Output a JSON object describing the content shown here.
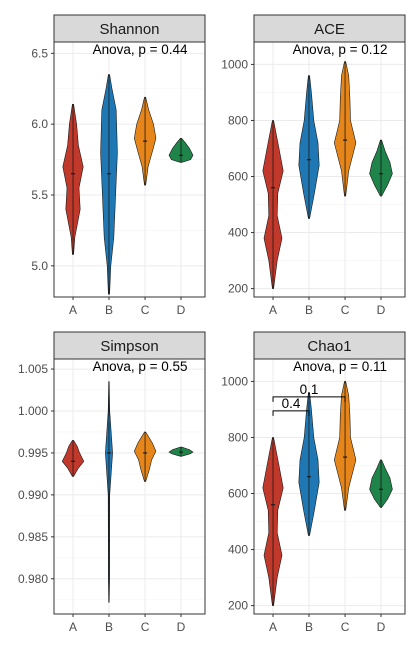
{
  "chart_data": [
    {
      "type": "violin",
      "title": "Shannon",
      "annotation": "Anova, p = 0.44",
      "categories": [
        "A",
        "B",
        "C",
        "D"
      ],
      "colors": [
        "#C0392B",
        "#1F78B4",
        "#E6851A",
        "#1E8449"
      ],
      "ylim": [
        4.78,
        6.58
      ],
      "yticks": [
        5.0,
        5.5,
        6.0,
        6.5
      ],
      "ytick_labels": [
        "5.0",
        "5.5",
        "6.0",
        "6.5"
      ],
      "series": [
        {
          "name": "A",
          "min": 5.08,
          "max": 6.14,
          "median": 5.65,
          "profile": [
            [
              5.08,
              0.05
            ],
            [
              5.2,
              0.15
            ],
            [
              5.4,
              0.6
            ],
            [
              5.55,
              0.5
            ],
            [
              5.7,
              0.85
            ],
            [
              5.85,
              0.45
            ],
            [
              6.0,
              0.3
            ],
            [
              6.14,
              0.05
            ]
          ]
        },
        {
          "name": "B",
          "min": 4.8,
          "max": 6.35,
          "median": 5.65,
          "profile": [
            [
              4.8,
              0.05
            ],
            [
              5.0,
              0.15
            ],
            [
              5.2,
              0.4
            ],
            [
              5.5,
              0.55
            ],
            [
              5.8,
              0.7
            ],
            [
              6.1,
              0.6
            ],
            [
              6.25,
              0.25
            ],
            [
              6.35,
              0.05
            ]
          ]
        },
        {
          "name": "C",
          "min": 5.57,
          "max": 6.19,
          "median": 5.88,
          "profile": [
            [
              5.57,
              0.05
            ],
            [
              5.7,
              0.25
            ],
            [
              5.82,
              0.65
            ],
            [
              5.9,
              0.9
            ],
            [
              6.0,
              0.7
            ],
            [
              6.1,
              0.3
            ],
            [
              6.19,
              0.05
            ]
          ]
        },
        {
          "name": "D",
          "min": 5.73,
          "max": 5.9,
          "median": 5.78,
          "profile": [
            [
              5.73,
              0.05
            ],
            [
              5.75,
              0.8
            ],
            [
              5.78,
              1.0
            ],
            [
              5.83,
              0.7
            ],
            [
              5.87,
              0.35
            ],
            [
              5.9,
              0.05
            ]
          ]
        }
      ]
    },
    {
      "type": "violin",
      "title": "ACE",
      "annotation": "Anova, p = 0.12",
      "categories": [
        "A",
        "B",
        "C",
        "D"
      ],
      "colors": [
        "#C0392B",
        "#1F78B4",
        "#E6851A",
        "#1E8449"
      ],
      "ylim": [
        170,
        1080
      ],
      "yticks": [
        200,
        400,
        600,
        800,
        1000
      ],
      "ytick_labels": [
        "200",
        "400",
        "600",
        "800",
        "1000"
      ],
      "series": [
        {
          "name": "A",
          "min": 200,
          "max": 800,
          "median": 560,
          "profile": [
            [
              200,
              0.05
            ],
            [
              300,
              0.35
            ],
            [
              380,
              0.75
            ],
            [
              460,
              0.35
            ],
            [
              540,
              0.4
            ],
            [
              620,
              0.85
            ],
            [
              700,
              0.5
            ],
            [
              800,
              0.05
            ]
          ]
        },
        {
          "name": "B",
          "min": 450,
          "max": 960,
          "median": 660,
          "profile": [
            [
              450,
              0.05
            ],
            [
              540,
              0.45
            ],
            [
              640,
              0.85
            ],
            [
              720,
              0.75
            ],
            [
              800,
              0.4
            ],
            [
              900,
              0.2
            ],
            [
              960,
              0.05
            ]
          ]
        },
        {
          "name": "C",
          "min": 530,
          "max": 1010,
          "median": 730,
          "profile": [
            [
              530,
              0.05
            ],
            [
              620,
              0.3
            ],
            [
              720,
              0.9
            ],
            [
              800,
              0.45
            ],
            [
              880,
              0.4
            ],
            [
              960,
              0.3
            ],
            [
              1010,
              0.05
            ]
          ]
        },
        {
          "name": "D",
          "min": 530,
          "max": 730,
          "median": 610,
          "profile": [
            [
              530,
              0.05
            ],
            [
              570,
              0.55
            ],
            [
              610,
              0.95
            ],
            [
              650,
              0.75
            ],
            [
              690,
              0.35
            ],
            [
              730,
              0.05
            ]
          ]
        }
      ]
    },
    {
      "type": "violin",
      "title": "Simpson",
      "annotation": "Anova, p = 0.55",
      "categories": [
        "A",
        "B",
        "C",
        "D"
      ],
      "colors": [
        "#C0392B",
        "#1F78B4",
        "#E6851A",
        "#1E8449"
      ],
      "ylim": [
        0.9758,
        1.0062
      ],
      "yticks": [
        0.98,
        0.985,
        0.99,
        0.995,
        1.0,
        1.005
      ],
      "ytick_labels": [
        "0.980",
        "0.985",
        "0.990",
        "0.995",
        "1.000",
        "1.005"
      ],
      "series": [
        {
          "name": "A",
          "min": 0.9922,
          "max": 0.9965,
          "median": 0.994,
          "profile": [
            [
              0.9922,
              0.05
            ],
            [
              0.9932,
              0.45
            ],
            [
              0.994,
              0.9
            ],
            [
              0.995,
              0.55
            ],
            [
              0.9958,
              0.35
            ],
            [
              0.9965,
              0.05
            ]
          ]
        },
        {
          "name": "B",
          "min": 0.9772,
          "max": 1.0035,
          "median": 0.995,
          "profile": [
            [
              0.9772,
              0.02
            ],
            [
              0.98,
              0.05
            ],
            [
              0.99,
              0.06
            ],
            [
              0.995,
              0.3
            ],
            [
              1.0,
              0.06
            ],
            [
              1.0035,
              0.02
            ]
          ]
        },
        {
          "name": "C",
          "min": 0.9916,
          "max": 0.9975,
          "median": 0.995,
          "profile": [
            [
              0.9916,
              0.05
            ],
            [
              0.993,
              0.35
            ],
            [
              0.9942,
              0.55
            ],
            [
              0.9952,
              0.9
            ],
            [
              0.9962,
              0.6
            ],
            [
              0.9975,
              0.05
            ]
          ]
        },
        {
          "name": "D",
          "min": 0.9946,
          "max": 0.9957,
          "median": 0.9951,
          "profile": [
            [
              0.9946,
              0.05
            ],
            [
              0.9949,
              0.75
            ],
            [
              0.9951,
              1.0
            ],
            [
              0.9954,
              0.7
            ],
            [
              0.9957,
              0.05
            ]
          ]
        }
      ]
    },
    {
      "type": "violin",
      "title": "Chao1",
      "annotation": "Anova, p = 0.11",
      "categories": [
        "A",
        "B",
        "C",
        "D"
      ],
      "colors": [
        "#C0392B",
        "#1F78B4",
        "#E6851A",
        "#1E8449"
      ],
      "ylim": [
        170,
        1080
      ],
      "yticks": [
        200,
        400,
        600,
        800,
        1000
      ],
      "ytick_labels": [
        "200",
        "400",
        "600",
        "800",
        "1000"
      ],
      "brackets": [
        {
          "from": "A",
          "to": "B",
          "label": "0.4",
          "y": 895
        },
        {
          "from": "A",
          "to": "C",
          "label": "0.1",
          "y": 945
        }
      ],
      "series": [
        {
          "name": "A",
          "min": 200,
          "max": 800,
          "median": 560,
          "profile": [
            [
              200,
              0.05
            ],
            [
              300,
              0.35
            ],
            [
              380,
              0.75
            ],
            [
              460,
              0.35
            ],
            [
              540,
              0.4
            ],
            [
              620,
              0.85
            ],
            [
              700,
              0.5
            ],
            [
              800,
              0.05
            ]
          ]
        },
        {
          "name": "B",
          "min": 450,
          "max": 960,
          "median": 660,
          "profile": [
            [
              450,
              0.05
            ],
            [
              540,
              0.45
            ],
            [
              640,
              0.85
            ],
            [
              720,
              0.75
            ],
            [
              800,
              0.4
            ],
            [
              900,
              0.2
            ],
            [
              960,
              0.05
            ]
          ]
        },
        {
          "name": "C",
          "min": 540,
          "max": 1000,
          "median": 730,
          "profile": [
            [
              540,
              0.05
            ],
            [
              620,
              0.3
            ],
            [
              720,
              0.9
            ],
            [
              800,
              0.45
            ],
            [
              880,
              0.4
            ],
            [
              950,
              0.3
            ],
            [
              1000,
              0.05
            ]
          ]
        },
        {
          "name": "D",
          "min": 550,
          "max": 720,
          "median": 615,
          "profile": [
            [
              550,
              0.05
            ],
            [
              580,
              0.55
            ],
            [
              615,
              0.95
            ],
            [
              655,
              0.75
            ],
            [
              690,
              0.35
            ],
            [
              720,
              0.05
            ]
          ]
        }
      ]
    }
  ]
}
